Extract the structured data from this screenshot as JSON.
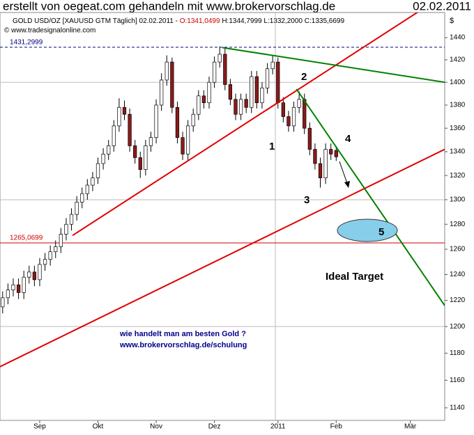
{
  "header": {
    "title": "erstellt von oegeat.com gehandeln mit www.brokervorschlag.de",
    "date": "02.02.2011"
  },
  "chart_data": {
    "type": "candlestick",
    "info": "GOLD USD/OZ [XAUUSD GTM  Täglich] 02.02.2011 -",
    "info_open": "O:1341,0499",
    "info_rest": "H:1344,7999 L:1332,2000 C:1335,6699",
    "source": "© www.tradesignalonline.com",
    "axis_unit": "$",
    "categories": [
      null,
      null,
      null,
      null,
      null,
      null,
      null,
      "Sep",
      null,
      null,
      null,
      null,
      null,
      null,
      null,
      null,
      null,
      null,
      "Okt",
      null,
      null,
      null,
      null,
      null,
      null,
      null,
      null,
      null,
      null,
      "Nov",
      null,
      null,
      null,
      null,
      null,
      null,
      null,
      null,
      null,
      null,
      "Dez",
      null,
      null,
      null,
      null,
      null,
      null,
      null,
      null,
      null,
      null,
      null,
      "2011",
      null,
      null,
      null,
      null,
      null,
      null,
      null,
      null,
      null,
      null,
      "Feb",
      null,
      null,
      null,
      null,
      null,
      null,
      null,
      null,
      null,
      null,
      null,
      null,
      null,
      "Mär",
      null,
      null,
      null,
      null,
      null,
      null
    ],
    "open": [
      1215,
      1222,
      1228,
      1232,
      1226,
      1238,
      1242,
      1236,
      1248,
      1252,
      1258,
      1262,
      1272,
      1280,
      1288,
      1298,
      1305,
      1312,
      1318,
      1330,
      1338,
      1345,
      1362,
      1378,
      1372,
      1345,
      1335,
      1325,
      1345,
      1352,
      1380,
      1402,
      1418,
      1378,
      1352,
      1338,
      1362,
      1372,
      1388,
      1382,
      1400,
      1418,
      1425,
      1398,
      1385,
      1372,
      1385,
      1378,
      1405,
      1382,
      1395,
      1412,
      1418,
      1382,
      1370,
      1362,
      1378,
      1385,
      1360,
      1342,
      1330,
      1318,
      1342,
      1341.0499,
      null,
      null,
      null,
      null,
      null,
      null,
      null,
      null,
      null,
      null,
      null,
      null,
      null,
      null,
      null,
      null,
      null,
      null,
      null,
      null
    ],
    "high": [
      1227,
      1233,
      1237,
      1237,
      1243,
      1247,
      1247,
      1253,
      1257,
      1263,
      1267,
      1277,
      1285,
      1293,
      1303,
      1310,
      1317,
      1323,
      1335,
      1343,
      1350,
      1367,
      1386,
      1384,
      1377,
      1350,
      1340,
      1350,
      1357,
      1385,
      1408,
      1424,
      1422,
      1383,
      1357,
      1367,
      1377,
      1393,
      1393,
      1405,
      1423,
      1432,
      1430,
      1403,
      1390,
      1390,
      1390,
      1410,
      1410,
      1400,
      1417,
      1424,
      1422,
      1387,
      1375,
      1383,
      1392,
      1390,
      1365,
      1347,
      1335,
      1347,
      1347,
      1344.7999,
      null,
      null,
      null,
      null,
      null,
      null,
      null,
      null,
      null,
      null,
      null,
      null,
      null,
      null,
      null,
      null,
      null,
      null,
      null,
      null
    ],
    "low": [
      1210,
      1217,
      1223,
      1221,
      1221,
      1233,
      1231,
      1231,
      1243,
      1247,
      1253,
      1257,
      1267,
      1275,
      1283,
      1293,
      1300,
      1307,
      1313,
      1325,
      1333,
      1340,
      1357,
      1367,
      1340,
      1330,
      1318,
      1320,
      1340,
      1347,
      1375,
      1397,
      1373,
      1347,
      1333,
      1333,
      1357,
      1367,
      1377,
      1377,
      1395,
      1413,
      1393,
      1380,
      1367,
      1367,
      1373,
      1373,
      1377,
      1377,
      1390,
      1407,
      1377,
      1365,
      1357,
      1357,
      1373,
      1355,
      1337,
      1325,
      1310,
      1313,
      1333,
      1332.2,
      null,
      null,
      null,
      null,
      null,
      null,
      null,
      null,
      null,
      null,
      null,
      null,
      null,
      null,
      null,
      null,
      null,
      null,
      null,
      null
    ],
    "close": [
      1222,
      1228,
      1232,
      1226,
      1238,
      1242,
      1236,
      1248,
      1252,
      1258,
      1262,
      1272,
      1280,
      1288,
      1298,
      1305,
      1312,
      1318,
      1330,
      1338,
      1345,
      1362,
      1378,
      1372,
      1345,
      1335,
      1325,
      1345,
      1352,
      1380,
      1402,
      1418,
      1378,
      1352,
      1338,
      1362,
      1372,
      1388,
      1382,
      1400,
      1418,
      1425,
      1398,
      1385,
      1372,
      1385,
      1378,
      1405,
      1382,
      1395,
      1412,
      1418,
      1382,
      1370,
      1362,
      1378,
      1385,
      1360,
      1342,
      1330,
      1318,
      1342,
      1338,
      1335.6699,
      null,
      null,
      null,
      null,
      null,
      null,
      null,
      null,
      null,
      null,
      null,
      null,
      null,
      null,
      null,
      null,
      null,
      null,
      null,
      null
    ],
    "up_color": "#ffffff",
    "down_color": "#8b1a1a",
    "log_scale": true,
    "ylim": [
      1131,
      1463
    ],
    "xlim": [
      0,
      84
    ],
    "yticks": [
      1140,
      1160,
      1180,
      1200,
      1220,
      1240,
      1260,
      1280,
      1300,
      1320,
      1340,
      1360,
      1380,
      1400,
      1420,
      1440
    ],
    "gridlines": [
      1200,
      1300,
      1400
    ],
    "hlines": [
      {
        "value": 1431.2999,
        "label": "1431,2999",
        "color": "#000080"
      },
      {
        "value": 1265.0699,
        "label": "1265,0699",
        "color": "#cc0000"
      }
    ],
    "trendlines": [
      {
        "color": "#e00000",
        "x": [
          13.7,
          81
        ],
        "y": [
          1271,
          1470
        ]
      },
      {
        "color": "#e00000",
        "x": [
          0,
          84
        ],
        "y": [
          1170,
          1342
        ]
      },
      {
        "color": "#008000",
        "x": [
          42,
          84
        ],
        "y": [
          1431,
          1400
        ]
      },
      {
        "color": "#008000",
        "x": [
          56,
          84
        ],
        "y": [
          1394,
          1216
        ]
      }
    ],
    "annotations": [
      "1",
      "2",
      "3",
      "4",
      "5",
      "Ideal Target"
    ],
    "notes": [
      "wie handelt man am besten Gold ?",
      "www.brokervorschlag.de/schulung"
    ]
  }
}
